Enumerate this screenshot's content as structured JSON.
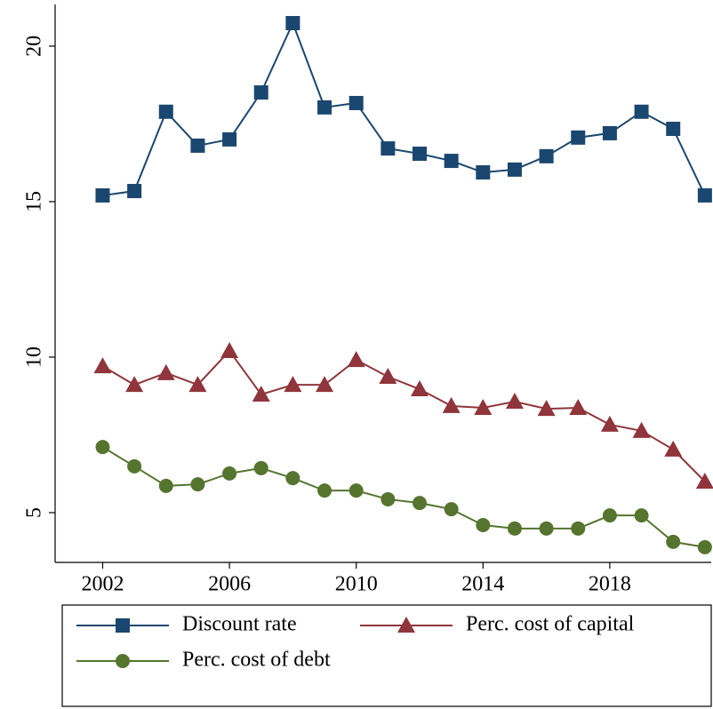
{
  "chart_data": {
    "type": "line",
    "x": [
      2002,
      2003,
      2004,
      2005,
      2006,
      2007,
      2008,
      2009,
      2010,
      2011,
      2012,
      2013,
      2014,
      2015,
      2016,
      2017,
      2018,
      2019,
      2020,
      2021
    ],
    "series": [
      {
        "name": "Discount rate",
        "color": "#1a476f",
        "marker": "square",
        "values": [
          15.2,
          15.34,
          17.89,
          16.8,
          17.0,
          18.51,
          20.74,
          18.03,
          18.17,
          16.71,
          16.54,
          16.31,
          15.94,
          16.03,
          16.46,
          17.06,
          17.2,
          17.89,
          17.34,
          15.2
        ]
      },
      {
        "name": "Perc. cost of capital",
        "color": "#90353b",
        "marker": "triangle",
        "values": [
          9.71,
          9.11,
          9.49,
          9.11,
          10.2,
          8.8,
          9.11,
          9.11,
          9.91,
          9.37,
          8.97,
          8.43,
          8.37,
          8.57,
          8.34,
          8.37,
          7.83,
          7.63,
          7.03,
          6.0
        ]
      },
      {
        "name": "Perc. cost of debt",
        "color": "#55752f",
        "marker": "circle",
        "values": [
          7.11,
          6.49,
          5.86,
          5.91,
          6.26,
          6.43,
          6.11,
          5.71,
          5.71,
          5.43,
          5.31,
          5.11,
          4.6,
          4.49,
          4.49,
          4.49,
          4.91,
          4.91,
          4.06,
          3.89
        ]
      }
    ],
    "xlim": [
      2000.5,
      2021.2
    ],
    "xticks": [
      2002,
      2006,
      2010,
      2014,
      2018
    ],
    "ylim": [
      3.4,
      21.34
    ],
    "yticks": [
      5,
      10,
      15,
      20
    ],
    "grid": false,
    "legend_position": "bottom"
  }
}
